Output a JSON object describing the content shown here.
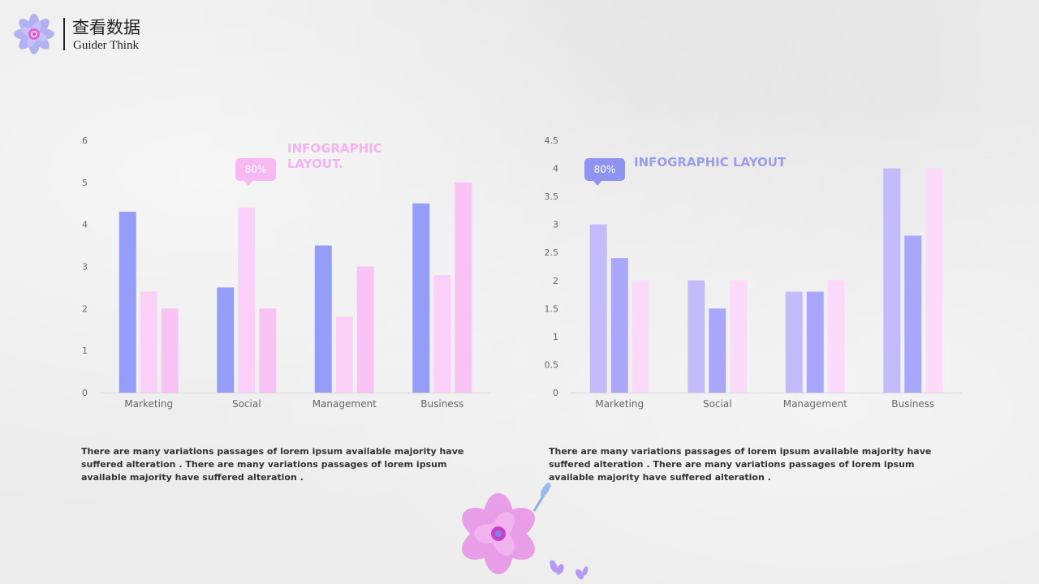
{
  "header": {
    "title_cn": "查看数据",
    "title_en": "Guider Think"
  },
  "colors": {
    "blue": "#959df8",
    "blue_light": "#a9a7fb",
    "pink_light": "#fbd0f8",
    "pink": "#f9c3f6",
    "lavender": "#c4bbfb",
    "pink_pale": "#fcdaf9",
    "callout_pink": "#f8b9f3",
    "callout_blue": "#8e94f0",
    "heading_pink": "#f5b2ef",
    "heading_blue": "#9a9de9",
    "axis_text": "#666666"
  },
  "charts": [
    {
      "callout": "80%",
      "heading": "INFOGRAPHIC LAYOUT.",
      "paragraph": "There are many variations  passages  of lorem ipsum available   majority have suffered alteration . There are many variations  passages  of lorem ipsum available   majority have suffered alteration ."
    },
    {
      "callout": "80%",
      "heading": "INFOGRAPHIC LAYOUT",
      "paragraph": "There are many variations  passages  of lorem ipsum available   majority have suffered alteration . There are many variations  passages  of lorem ipsum available   majority have suffered alteration ."
    }
  ],
  "chart_data": [
    {
      "type": "bar",
      "categories": [
        "Marketing",
        "Social",
        "Management",
        "Business"
      ],
      "series": [
        {
          "values": [
            4.3,
            2.5,
            3.5,
            4.5
          ],
          "color": "#959df8"
        },
        {
          "values": [
            2.4,
            4.4,
            1.8,
            2.8
          ],
          "color": "#fbd0f8"
        },
        {
          "values": [
            2.0,
            2.0,
            3.0,
            5.0
          ],
          "color": "#f9c3f6"
        }
      ],
      "ylim": [
        0,
        6
      ],
      "yticks": [
        "0",
        "1",
        "2",
        "3",
        "4",
        "5",
        "6"
      ],
      "grid": false
    },
    {
      "type": "bar",
      "categories": [
        "Marketing",
        "Social",
        "Management",
        "Business"
      ],
      "series": [
        {
          "values": [
            3.0,
            2.0,
            1.8,
            4.0
          ],
          "color": "#c4bbfb"
        },
        {
          "values": [
            2.4,
            1.5,
            1.8,
            2.8
          ],
          "color": "#a9a7fb"
        },
        {
          "values": [
            2.0,
            2.0,
            2.0,
            4.0
          ],
          "color": "#fcdaf9"
        }
      ],
      "ylim": [
        0,
        4.5
      ],
      "yticks": [
        "0",
        "0.5",
        "1",
        "1.5",
        "2",
        "2.5",
        "3",
        "3.5",
        "4",
        "4.5"
      ],
      "grid": false
    }
  ]
}
